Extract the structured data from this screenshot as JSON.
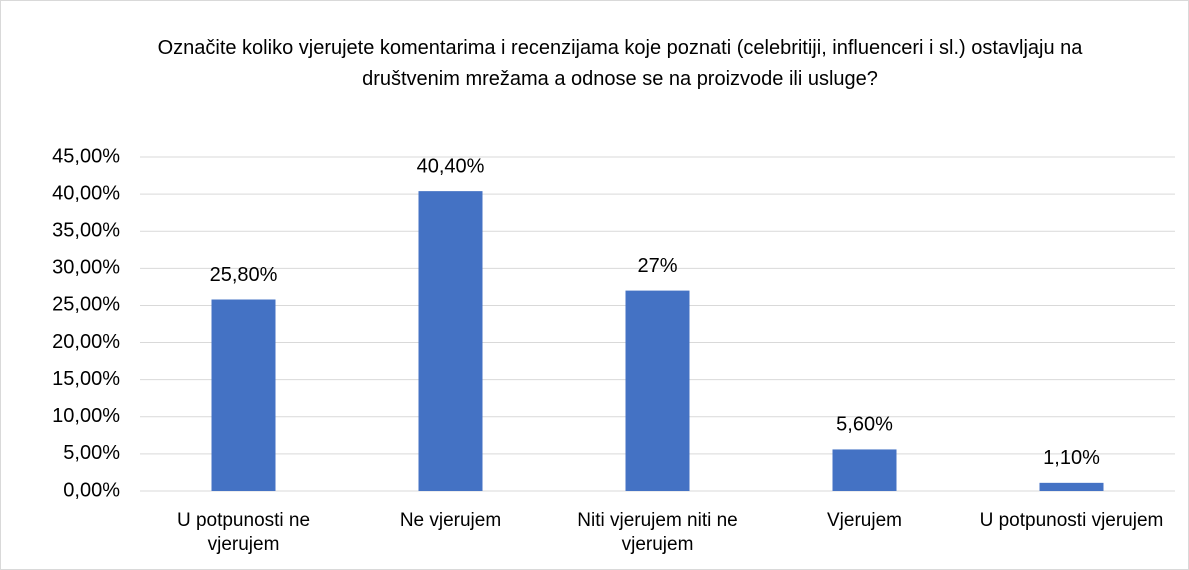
{
  "chart_data": {
    "type": "bar",
    "title": "Označite koliko vjerujete komentarima i recenzijama koje poznati (celebritiji, influenceri i sl.)  ostavljaju na društvenim mrežama a odnose se na proizvode ili usluge?",
    "categories": [
      "U potpunosti ne vjerujem",
      "Ne vjerujem",
      "Niti vjerujem niti ne vjerujem",
      "Vjerujem",
      "U potpunosti vjerujem"
    ],
    "values": [
      25.8,
      40.4,
      27,
      5.6,
      1.1
    ],
    "value_labels": [
      "25,80%",
      "40,40%",
      "27%",
      "5,60%",
      "1,10%"
    ],
    "color": "#4472c4",
    "ylim": [
      0,
      45
    ],
    "yticks": [
      {
        "value": 0,
        "label": "0,00%"
      },
      {
        "value": 5,
        "label": "5,00%"
      },
      {
        "value": 10,
        "label": "10,00%"
      },
      {
        "value": 15,
        "label": "15,00%"
      },
      {
        "value": 20,
        "label": "20,00%"
      },
      {
        "value": 25,
        "label": "25,00%"
      },
      {
        "value": 30,
        "label": "30,00%"
      },
      {
        "value": 35,
        "label": "35,00%"
      },
      {
        "value": 40,
        "label": "40,00%"
      },
      {
        "value": 45,
        "label": "45,00%"
      }
    ],
    "grid": true
  }
}
